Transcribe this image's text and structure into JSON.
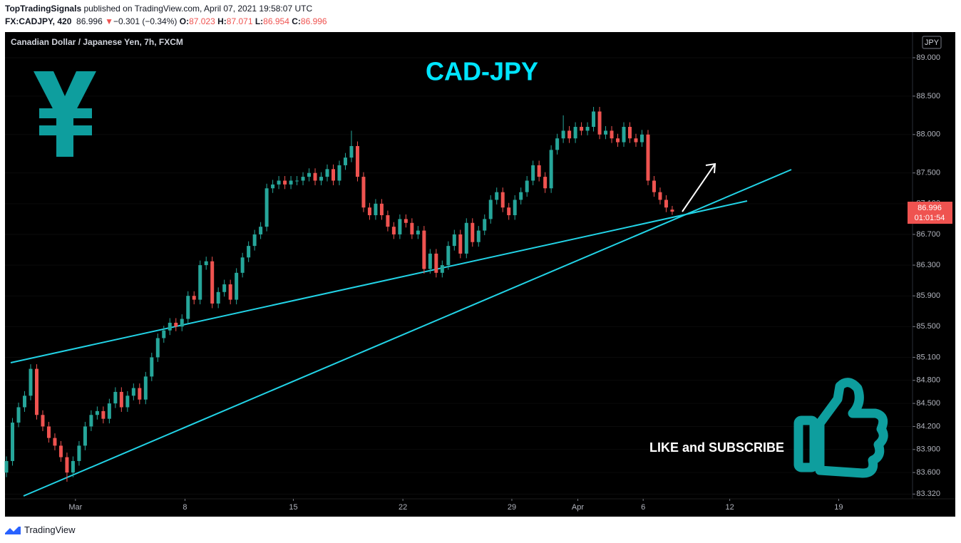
{
  "header": {
    "author": "TopTradingSignals",
    "published": " published on TradingView.com, April 07, 2021 19:58:07 UTC",
    "symbol": "FX:CADJPY, 420",
    "price": "86.996",
    "arrow": "▼",
    "change": "−0.301 (−0.34%)",
    "o_label": "O:",
    "o": "87.023",
    "h_label": "H:",
    "h": "87.071",
    "l_label": "L:",
    "l": "86.954",
    "c_label": "C:",
    "c": "86.996"
  },
  "footer": {
    "brand": "TradingView"
  },
  "chart_data": {
    "type": "candlestick",
    "title": "Canadian Dollar / Japanese Yen, 7h, FXCM",
    "annotations": [
      "CAD-JPY",
      "LIKE and SUBSCRIBE"
    ],
    "currency": "JPY",
    "last_price_label": "86.996",
    "countdown": "01:01:54",
    "up_color": "#26a69a",
    "down_color": "#ef5350",
    "ylim": [
      83.258,
      89.334
    ],
    "yticks": [
      {
        "value": 89,
        "label": "89.000"
      },
      {
        "value": 88.5,
        "label": "88.500"
      },
      {
        "value": 88,
        "label": "88.000"
      },
      {
        "value": 87.5,
        "label": "87.500"
      },
      {
        "value": 87.1,
        "label": "87.100"
      },
      {
        "value": 86.7,
        "label": "86.700"
      },
      {
        "value": 86.3,
        "label": "86.300"
      },
      {
        "value": 85.9,
        "label": "85.900"
      },
      {
        "value": 85.5,
        "label": "85.500"
      },
      {
        "value": 85.1,
        "label": "85.100"
      },
      {
        "value": 84.8,
        "label": "84.800"
      },
      {
        "value": 84.5,
        "label": "84.500"
      },
      {
        "value": 84.2,
        "label": "84.200"
      },
      {
        "value": 83.9,
        "label": "83.900"
      },
      {
        "value": 83.6,
        "label": "83.600"
      },
      {
        "value": 83.32,
        "label": "83.320"
      }
    ],
    "xlim": [
      -0.24,
      149.7
    ],
    "xticks": [
      {
        "value": 11.4,
        "label": "Mar"
      },
      {
        "value": 29.5,
        "label": "8"
      },
      {
        "value": 47.4,
        "label": "15"
      },
      {
        "value": 65.5,
        "label": "22"
      },
      {
        "value": 83.5,
        "label": "29"
      },
      {
        "value": 94.4,
        "label": "Apr"
      },
      {
        "value": 105.2,
        "label": "6"
      },
      {
        "value": 119.5,
        "label": "12"
      },
      {
        "value": 137.5,
        "label": "19"
      }
    ],
    "values": [
      [
        83.6,
        83.81,
        83.54,
        83.75
      ],
      [
        83.75,
        84.31,
        83.69,
        84.25
      ],
      [
        84.25,
        84.51,
        84.19,
        84.45
      ],
      [
        84.45,
        84.66,
        84.39,
        84.6
      ],
      [
        84.6,
        85.01,
        84.54,
        84.95
      ],
      [
        84.95,
        85.01,
        84.29,
        84.35
      ],
      [
        84.35,
        84.41,
        84.14,
        84.2
      ],
      [
        84.2,
        84.26,
        83.99,
        84.05
      ],
      [
        84.05,
        84.11,
        83.89,
        83.95
      ],
      [
        83.95,
        84.01,
        83.74,
        83.8
      ],
      [
        83.8,
        83.86,
        83.48,
        83.6
      ],
      [
        83.6,
        83.81,
        83.54,
        83.75
      ],
      [
        83.75,
        84.01,
        83.69,
        83.95
      ],
      [
        83.95,
        84.26,
        83.89,
        84.2
      ],
      [
        84.2,
        84.41,
        84.14,
        84.35
      ],
      [
        84.35,
        84.46,
        84.29,
        84.4
      ],
      [
        84.4,
        84.46,
        84.24,
        84.3
      ],
      [
        84.3,
        84.56,
        84.24,
        84.5
      ],
      [
        84.5,
        84.71,
        84.44,
        84.65
      ],
      [
        84.65,
        84.71,
        84.39,
        84.45
      ],
      [
        84.45,
        84.66,
        84.39,
        84.6
      ],
      [
        84.6,
        84.76,
        84.54,
        84.7
      ],
      [
        84.7,
        84.76,
        84.49,
        84.55
      ],
      [
        84.55,
        84.91,
        84.49,
        84.85
      ],
      [
        84.85,
        85.16,
        84.79,
        85.1
      ],
      [
        85.1,
        85.41,
        85.04,
        85.35
      ],
      [
        85.35,
        85.51,
        85.29,
        85.45
      ],
      [
        85.45,
        85.61,
        85.39,
        85.55
      ],
      [
        85.55,
        85.61,
        85.44,
        85.5
      ],
      [
        85.5,
        85.66,
        85.44,
        85.6
      ],
      [
        85.6,
        85.96,
        85.54,
        85.9
      ],
      [
        85.9,
        85.96,
        85.79,
        85.85
      ],
      [
        85.85,
        86.36,
        85.79,
        86.3
      ],
      [
        86.3,
        86.41,
        86.24,
        86.35
      ],
      [
        86.35,
        86.41,
        85.74,
        85.8
      ],
      [
        85.8,
        86.01,
        85.74,
        85.95
      ],
      [
        85.95,
        86.11,
        85.89,
        86.05
      ],
      [
        86.05,
        86.11,
        85.79,
        85.85
      ],
      [
        85.85,
        86.26,
        85.79,
        86.2
      ],
      [
        86.2,
        86.46,
        86.14,
        86.4
      ],
      [
        86.4,
        86.61,
        86.34,
        86.55
      ],
      [
        86.55,
        86.76,
        86.49,
        86.7
      ],
      [
        86.7,
        86.86,
        86.64,
        86.8
      ],
      [
        86.8,
        87.36,
        86.74,
        87.3
      ],
      [
        87.3,
        87.41,
        87.24,
        87.35
      ],
      [
        87.35,
        87.46,
        87.29,
        87.4
      ],
      [
        87.4,
        87.46,
        87.29,
        87.35
      ],
      [
        87.35,
        87.46,
        87.29,
        87.4
      ],
      [
        87.4,
        87.46,
        87.34,
        87.4
      ],
      [
        87.4,
        87.51,
        87.34,
        87.45
      ],
      [
        87.45,
        87.56,
        87.39,
        87.5
      ],
      [
        87.5,
        87.56,
        87.34,
        87.4
      ],
      [
        87.4,
        87.51,
        87.34,
        87.45
      ],
      [
        87.45,
        87.61,
        87.39,
        87.55
      ],
      [
        87.55,
        87.61,
        87.34,
        87.4
      ],
      [
        87.4,
        87.66,
        87.34,
        87.6
      ],
      [
        87.6,
        87.76,
        87.54,
        87.7
      ],
      [
        87.7,
        88.05,
        87.64,
        87.85
      ],
      [
        87.85,
        87.91,
        87.39,
        87.45
      ],
      [
        87.45,
        87.51,
        86.99,
        87.05
      ],
      [
        87.05,
        87.11,
        86.89,
        86.95
      ],
      [
        86.95,
        87.16,
        86.89,
        87.1
      ],
      [
        87.1,
        87.16,
        86.89,
        86.95
      ],
      [
        86.95,
        87.01,
        86.74,
        86.8
      ],
      [
        86.8,
        86.86,
        86.64,
        86.7
      ],
      [
        86.7,
        86.96,
        86.64,
        86.9
      ],
      [
        86.9,
        86.96,
        86.79,
        86.85
      ],
      [
        86.85,
        86.91,
        86.64,
        86.7
      ],
      [
        86.7,
        86.81,
        86.64,
        86.75
      ],
      [
        86.75,
        86.81,
        86.19,
        86.25
      ],
      [
        86.25,
        86.51,
        86.19,
        86.45
      ],
      [
        86.45,
        86.51,
        86.14,
        86.2
      ],
      [
        86.2,
        86.36,
        86.14,
        86.3
      ],
      [
        86.3,
        86.61,
        86.24,
        86.55
      ],
      [
        86.55,
        86.76,
        86.49,
        86.7
      ],
      [
        86.7,
        86.76,
        86.39,
        86.45
      ],
      [
        86.45,
        86.91,
        86.39,
        86.85
      ],
      [
        86.85,
        86.91,
        86.54,
        86.6
      ],
      [
        86.6,
        86.81,
        86.54,
        86.75
      ],
      [
        86.75,
        86.96,
        86.69,
        86.9
      ],
      [
        86.9,
        87.21,
        86.84,
        87.15
      ],
      [
        87.15,
        87.31,
        87.09,
        87.25
      ],
      [
        87.25,
        87.31,
        86.99,
        87.05
      ],
      [
        87.05,
        87.11,
        86.89,
        86.95
      ],
      [
        86.95,
        87.21,
        86.89,
        87.15
      ],
      [
        87.15,
        87.31,
        87.09,
        87.25
      ],
      [
        87.25,
        87.46,
        87.19,
        87.4
      ],
      [
        87.4,
        87.66,
        87.34,
        87.6
      ],
      [
        87.6,
        87.66,
        87.39,
        87.45
      ],
      [
        87.45,
        87.51,
        87.24,
        87.3
      ],
      [
        87.3,
        87.86,
        87.24,
        87.8
      ],
      [
        87.8,
        88.01,
        87.74,
        87.95
      ],
      [
        87.95,
        88.25,
        87.89,
        88.05
      ],
      [
        88.05,
        88.11,
        87.89,
        87.95
      ],
      [
        87.95,
        88.16,
        87.89,
        88.1
      ],
      [
        88.1,
        88.16,
        87.99,
        88.05
      ],
      [
        88.05,
        88.16,
        87.99,
        88.1
      ],
      [
        88.1,
        88.36,
        88.04,
        88.3
      ],
      [
        88.3,
        88.36,
        87.94,
        88.0
      ],
      [
        88.0,
        88.11,
        87.94,
        88.05
      ],
      [
        88.05,
        88.11,
        87.89,
        87.95
      ],
      [
        87.95,
        88.01,
        87.84,
        87.9
      ],
      [
        87.9,
        88.16,
        87.84,
        88.1
      ],
      [
        88.1,
        88.16,
        87.89,
        87.95
      ],
      [
        87.95,
        88.01,
        87.84,
        87.9
      ],
      [
        87.9,
        88.06,
        87.84,
        88.0
      ],
      [
        88.0,
        88.06,
        87.34,
        87.4
      ],
      [
        87.4,
        87.46,
        87.19,
        87.25
      ],
      [
        87.25,
        87.31,
        87.09,
        87.15
      ],
      [
        87.15,
        87.21,
        86.99,
        87.05
      ],
      [
        87.023,
        87.071,
        86.954,
        86.996
      ]
    ]
  }
}
